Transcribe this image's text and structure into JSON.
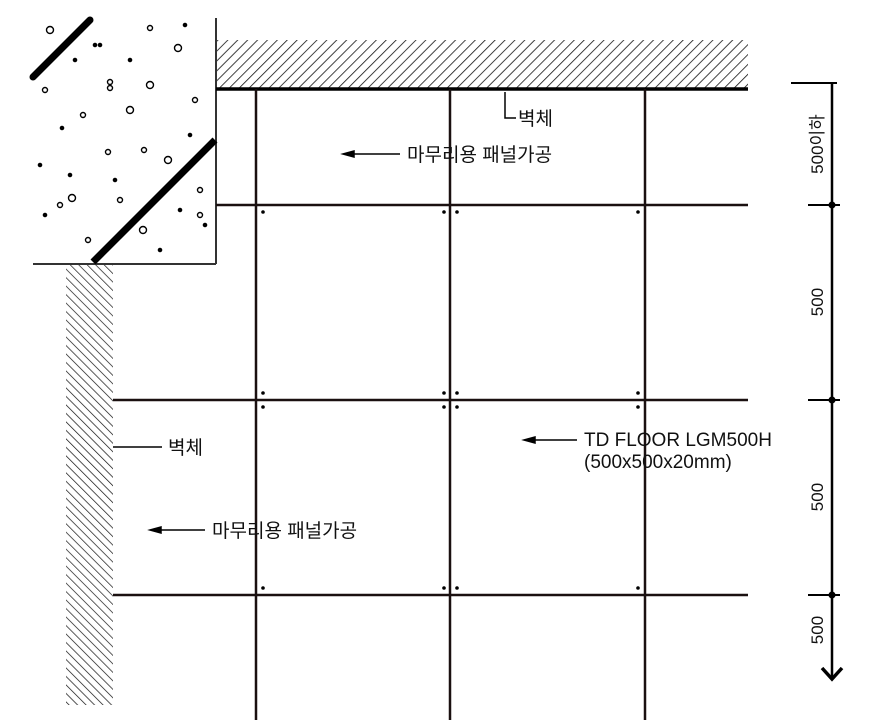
{
  "labels": {
    "wall_top": "벽체",
    "finish_panel_top": "마무리용 패널가공",
    "floor_product_line1": "TD FLOOR LGM500H",
    "floor_product_line2": "(500x500x20mm)",
    "wall_left": "벽체",
    "finish_panel_left": "마무리용 패널가공"
  },
  "dimensions": [
    "500이하",
    "500",
    "500",
    "500"
  ],
  "colors": {
    "line": "#1a1010",
    "ink": "#000000"
  }
}
